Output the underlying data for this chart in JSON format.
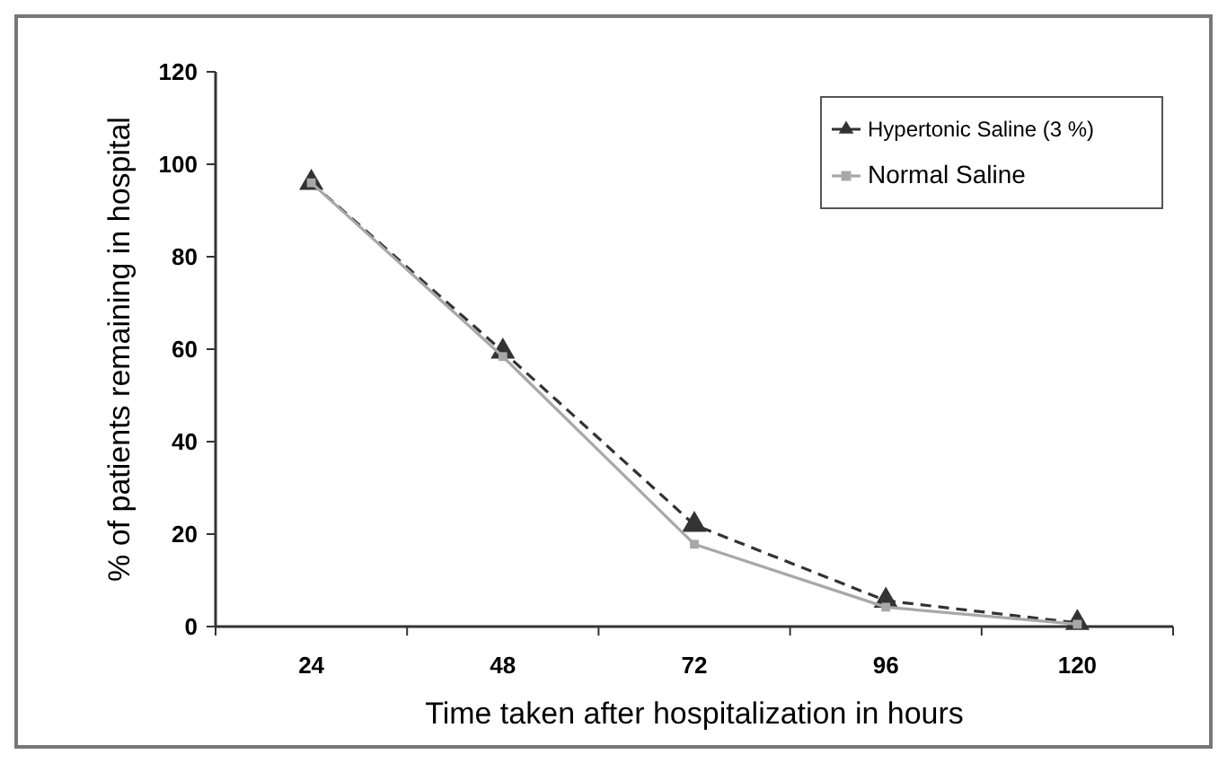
{
  "chart_data": {
    "type": "line",
    "xlabel": "Time taken after hospitalization in hours",
    "ylabel": "% of patients remaining in hospital",
    "categories": [
      "24",
      "48",
      "72",
      "96",
      "120"
    ],
    "series": [
      {
        "name": "Hypertonic Saline (3 %)",
        "color": "#333333",
        "values": [
          96,
          59.5,
          22,
          5.6,
          0.8
        ],
        "marker": "triangle",
        "line_style": "dashed"
      },
      {
        "name": "Normal Saline",
        "color": "#a8a8a8",
        "values": [
          96,
          58.4,
          17.8,
          4.2,
          0.5
        ],
        "marker": "square",
        "line_style": "solid"
      }
    ],
    "ylim": [
      0,
      120
    ],
    "yticks": [
      0,
      20,
      40,
      60,
      80,
      100,
      120
    ],
    "grid": false,
    "legend": "top right"
  }
}
